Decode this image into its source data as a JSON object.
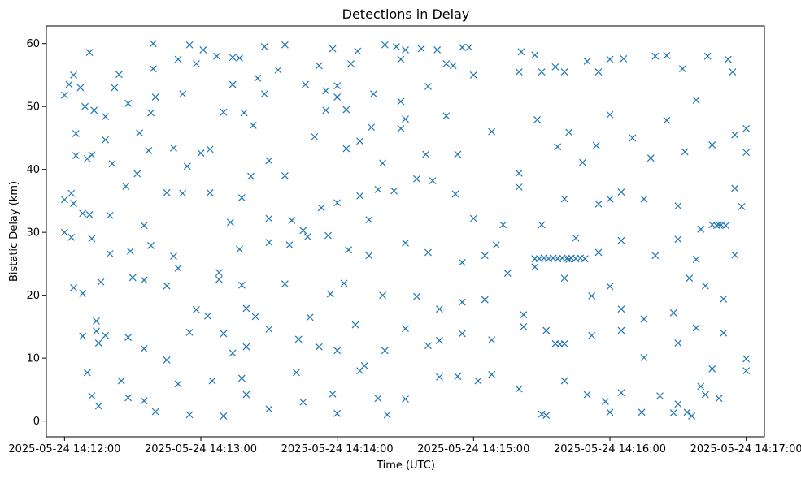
{
  "chart_data": {
    "type": "scatter",
    "title": "Detections in Delay",
    "xlabel": "Time (UTC)",
    "ylabel": "Bistatic Delay (km)",
    "x_type": "time",
    "xlim": [
      "2025-05-24 14:11:52",
      "2025-05-24 14:17:08"
    ],
    "ylim": [
      -2.5,
      62.8
    ],
    "x_ticks": [
      "2025-05-24 14:12:00",
      "2025-05-24 14:13:00",
      "2025-05-24 14:14:00",
      "2025-05-24 14:15:00",
      "2025-05-24 14:16:00",
      "2025-05-24 14:17:00"
    ],
    "y_ticks": [
      0,
      10,
      20,
      30,
      40,
      50,
      60
    ],
    "marker": "x",
    "grid": false,
    "color": "#1f77b4",
    "points": [
      [
        "2025-05-24 14:12:00",
        51.8
      ],
      [
        "2025-05-24 14:12:02",
        53.5
      ],
      [
        "2025-05-24 14:12:04",
        55.0
      ],
      [
        "2025-05-24 14:12:07",
        53.0
      ],
      [
        "2025-05-24 14:12:09",
        50.0
      ],
      [
        "2025-05-24 14:12:11",
        58.6
      ],
      [
        "2025-05-24 14:12:13",
        49.4
      ],
      [
        "2025-05-24 14:12:18",
        44.7
      ],
      [
        "2025-05-24 14:12:22",
        53.0
      ],
      [
        "2025-05-24 14:12:24",
        55.1
      ],
      [
        "2025-05-24 14:12:28",
        50.5
      ],
      [
        "2025-05-24 14:12:38",
        49.0
      ],
      [
        "2025-05-24 14:12:40",
        51.5
      ],
      [
        "2025-05-24 14:12:39",
        60.0
      ],
      [
        "2025-05-24 14:12:39",
        56.0
      ],
      [
        "2025-05-24 14:12:50",
        57.5
      ],
      [
        "2025-05-24 14:12:52",
        52.0
      ],
      [
        "2025-05-24 14:12:55",
        59.8
      ],
      [
        "2025-05-24 14:12:58",
        56.8
      ],
      [
        "2025-05-24 14:13:01",
        59.0
      ],
      [
        "2025-05-24 14:13:07",
        58.0
      ],
      [
        "2025-05-24 14:13:14",
        57.8
      ],
      [
        "2025-05-24 14:13:17",
        57.7
      ],
      [
        "2025-05-24 14:13:14",
        53.5
      ],
      [
        "2025-05-24 14:13:23",
        47.0
      ],
      [
        "2025-05-24 14:13:25",
        54.5
      ],
      [
        "2025-05-24 14:13:28",
        52.0
      ],
      [
        "2025-05-24 14:13:28",
        59.5
      ],
      [
        "2025-05-24 14:13:34",
        55.8
      ],
      [
        "2025-05-24 14:13:37",
        59.8
      ],
      [
        "2025-05-24 14:13:46",
        53.5
      ],
      [
        "2025-05-24 14:13:52",
        56.5
      ],
      [
        "2025-05-24 14:13:55",
        52.5
      ],
      [
        "2025-05-24 14:14:00",
        53.3
      ],
      [
        "2025-05-24 14:13:58",
        59.2
      ],
      [
        "2025-05-24 14:14:00",
        51.5
      ],
      [
        "2025-05-24 14:14:04",
        49.5
      ],
      [
        "2025-05-24 14:14:06",
        56.8
      ],
      [
        "2025-05-24 14:14:09",
        58.8
      ],
      [
        "2025-05-24 14:14:16",
        52.0
      ],
      [
        "2025-05-24 14:14:21",
        59.8
      ],
      [
        "2025-05-24 14:14:26",
        59.5
      ],
      [
        "2025-05-24 14:14:28",
        57.5
      ],
      [
        "2025-05-24 14:14:30",
        59.0
      ],
      [
        "2025-05-24 14:14:28",
        50.8
      ],
      [
        "2025-05-24 14:14:30",
        48.0
      ],
      [
        "2025-05-24 14:14:28",
        46.5
      ],
      [
        "2025-05-24 14:14:37",
        59.2
      ],
      [
        "2025-05-24 14:14:40",
        53.2
      ],
      [
        "2025-05-24 14:14:44",
        59.0
      ],
      [
        "2025-05-24 14:14:48",
        56.8
      ],
      [
        "2025-05-24 14:14:51",
        56.5
      ],
      [
        "2025-05-24 14:14:55",
        59.4
      ],
      [
        "2025-05-24 14:14:58",
        59.4
      ],
      [
        "2025-05-24 14:15:00",
        55.0
      ],
      [
        "2025-05-24 14:15:20",
        55.5
      ],
      [
        "2025-05-24 14:15:21",
        58.7
      ],
      [
        "2025-05-24 14:15:27",
        58.2
      ],
      [
        "2025-05-24 14:15:30",
        55.5
      ],
      [
        "2025-05-24 14:15:36",
        56.3
      ],
      [
        "2025-05-24 14:15:40",
        55.5
      ],
      [
        "2025-05-24 14:15:50",
        57.2
      ],
      [
        "2025-05-24 14:15:55",
        55.5
      ],
      [
        "2025-05-24 14:16:00",
        57.5
      ],
      [
        "2025-05-24 14:16:06",
        57.6
      ],
      [
        "2025-05-24 14:16:20",
        58.0
      ],
      [
        "2025-05-24 14:16:25",
        58.1
      ],
      [
        "2025-05-24 14:16:32",
        56.0
      ],
      [
        "2025-05-24 14:16:43",
        58.0
      ],
      [
        "2025-05-24 14:16:52",
        57.5
      ],
      [
        "2025-05-24 14:16:54",
        55.5
      ],
      [
        "2025-05-24 14:17:00",
        46.5
      ],
      [
        "2025-05-24 14:12:05",
        45.7
      ],
      [
        "2025-05-24 14:12:05",
        42.2
      ],
      [
        "2025-05-24 14:12:10",
        41.7
      ],
      [
        "2025-05-24 14:12:12",
        42.3
      ],
      [
        "2025-05-24 14:12:18",
        48.4
      ],
      [
        "2025-05-24 14:12:21",
        40.9
      ],
      [
        "2025-05-24 14:12:33",
        45.8
      ],
      [
        "2025-05-24 14:12:37",
        43.0
      ],
      [
        "2025-05-24 14:12:48",
        43.4
      ],
      [
        "2025-05-24 14:12:54",
        40.5
      ],
      [
        "2025-05-24 14:13:00",
        42.6
      ],
      [
        "2025-05-24 14:13:04",
        43.2
      ],
      [
        "2025-05-24 14:13:10",
        49.1
      ],
      [
        "2025-05-24 14:13:19",
        49.0
      ],
      [
        "2025-05-24 14:13:30",
        41.4
      ],
      [
        "2025-05-24 14:13:50",
        45.2
      ],
      [
        "2025-05-24 14:13:55",
        49.4
      ],
      [
        "2025-05-24 14:14:04",
        43.3
      ],
      [
        "2025-05-24 14:14:10",
        44.5
      ],
      [
        "2025-05-24 14:14:15",
        46.7
      ],
      [
        "2025-05-24 14:14:20",
        41.0
      ],
      [
        "2025-05-24 14:14:39",
        42.4
      ],
      [
        "2025-05-24 14:14:48",
        48.5
      ],
      [
        "2025-05-24 14:14:53",
        42.4
      ],
      [
        "2025-05-24 14:15:08",
        46.0
      ],
      [
        "2025-05-24 14:15:20",
        39.4
      ],
      [
        "2025-05-24 14:15:28",
        47.9
      ],
      [
        "2025-05-24 14:15:37",
        43.6
      ],
      [
        "2025-05-24 14:15:42",
        45.9
      ],
      [
        "2025-05-24 14:15:48",
        41.1
      ],
      [
        "2025-05-24 14:15:54",
        43.8
      ],
      [
        "2025-05-24 14:16:00",
        48.7
      ],
      [
        "2025-05-24 14:16:10",
        45.0
      ],
      [
        "2025-05-24 14:16:18",
        41.8
      ],
      [
        "2025-05-24 14:16:25",
        47.8
      ],
      [
        "2025-05-24 14:16:33",
        42.8
      ],
      [
        "2025-05-24 14:16:38",
        51.0
      ],
      [
        "2025-05-24 14:16:45",
        43.9
      ],
      [
        "2025-05-24 14:16:55",
        45.5
      ],
      [
        "2025-05-24 14:17:00",
        42.7
      ],
      [
        "2025-05-24 14:12:00",
        35.2
      ],
      [
        "2025-05-24 14:12:03",
        36.2
      ],
      [
        "2025-05-24 14:12:04",
        34.6
      ],
      [
        "2025-05-24 14:12:08",
        33.0
      ],
      [
        "2025-05-24 14:12:11",
        32.8
      ],
      [
        "2025-05-24 14:12:20",
        32.7
      ],
      [
        "2025-05-24 14:12:27",
        37.3
      ],
      [
        "2025-05-24 14:12:32",
        39.3
      ],
      [
        "2025-05-24 14:12:35",
        31.1
      ],
      [
        "2025-05-24 14:12:45",
        36.3
      ],
      [
        "2025-05-24 14:12:52",
        36.2
      ],
      [
        "2025-05-24 14:13:04",
        36.3
      ],
      [
        "2025-05-24 14:13:13",
        31.6
      ],
      [
        "2025-05-24 14:13:18",
        35.5
      ],
      [
        "2025-05-24 14:13:22",
        38.9
      ],
      [
        "2025-05-24 14:13:30",
        32.2
      ],
      [
        "2025-05-24 14:13:37",
        39.0
      ],
      [
        "2025-05-24 14:13:40",
        31.9
      ],
      [
        "2025-05-24 14:13:45",
        30.3
      ],
      [
        "2025-05-24 14:13:53",
        33.9
      ],
      [
        "2025-05-24 14:14:00",
        34.7
      ],
      [
        "2025-05-24 14:14:10",
        35.8
      ],
      [
        "2025-05-24 14:14:14",
        32.0
      ],
      [
        "2025-05-24 14:14:18",
        36.8
      ],
      [
        "2025-05-24 14:14:25",
        36.6
      ],
      [
        "2025-05-24 14:14:35",
        38.5
      ],
      [
        "2025-05-24 14:14:42",
        38.2
      ],
      [
        "2025-05-24 14:14:52",
        36.1
      ],
      [
        "2025-05-24 14:15:00",
        32.2
      ],
      [
        "2025-05-24 14:15:13",
        31.2
      ],
      [
        "2025-05-24 14:15:20",
        37.2
      ],
      [
        "2025-05-24 14:15:30",
        31.2
      ],
      [
        "2025-05-24 14:15:40",
        35.3
      ],
      [
        "2025-05-24 14:15:55",
        34.5
      ],
      [
        "2025-05-24 14:16:00",
        35.3
      ],
      [
        "2025-05-24 14:16:05",
        36.4
      ],
      [
        "2025-05-24 14:16:15",
        35.3
      ],
      [
        "2025-05-24 14:16:30",
        34.2
      ],
      [
        "2025-05-24 14:16:40",
        30.5
      ],
      [
        "2025-05-24 14:16:48",
        31.2
      ],
      [
        "2025-05-24 14:16:55",
        37.0
      ],
      [
        "2025-05-24 14:16:58",
        34.1
      ],
      [
        "2025-05-24 14:12:00",
        30.0
      ],
      [
        "2025-05-24 14:12:03",
        29.2
      ],
      [
        "2025-05-24 14:12:12",
        29.0
      ],
      [
        "2025-05-24 14:12:20",
        26.6
      ],
      [
        "2025-05-24 14:12:29",
        27.0
      ],
      [
        "2025-05-24 14:12:38",
        27.9
      ],
      [
        "2025-05-24 14:12:48",
        26.2
      ],
      [
        "2025-05-24 14:12:50",
        24.3
      ],
      [
        "2025-05-24 14:13:08",
        23.6
      ],
      [
        "2025-05-24 14:13:17",
        27.3
      ],
      [
        "2025-05-24 14:13:30",
        28.4
      ],
      [
        "2025-05-24 14:13:39",
        28.0
      ],
      [
        "2025-05-24 14:13:47",
        29.3
      ],
      [
        "2025-05-24 14:13:56",
        29.5
      ],
      [
        "2025-05-24 14:14:05",
        27.2
      ],
      [
        "2025-05-24 14:14:14",
        26.3
      ],
      [
        "2025-05-24 14:14:30",
        28.3
      ],
      [
        "2025-05-24 14:14:40",
        26.8
      ],
      [
        "2025-05-24 14:14:55",
        25.2
      ],
      [
        "2025-05-24 14:15:05",
        26.3
      ],
      [
        "2025-05-24 14:15:10",
        28.0
      ],
      [
        "2025-05-24 14:15:15",
        23.5
      ],
      [
        "2025-05-24 14:15:27",
        24.5
      ],
      [
        "2025-05-24 14:15:42",
        25.7
      ],
      [
        "2025-05-24 14:15:45",
        29.1
      ],
      [
        "2025-05-24 14:15:55",
        26.8
      ],
      [
        "2025-05-24 14:16:05",
        28.7
      ],
      [
        "2025-05-24 14:16:20",
        26.3
      ],
      [
        "2025-05-24 14:16:30",
        28.9
      ],
      [
        "2025-05-24 14:16:38",
        25.7
      ],
      [
        "2025-05-24 14:16:55",
        26.4
      ],
      [
        "2025-05-24 14:15:27",
        25.8
      ],
      [
        "2025-05-24 14:15:29",
        25.8
      ],
      [
        "2025-05-24 14:15:31",
        25.9
      ],
      [
        "2025-05-24 14:15:33",
        25.8
      ],
      [
        "2025-05-24 14:15:35",
        25.9
      ],
      [
        "2025-05-24 14:15:37",
        25.8
      ],
      [
        "2025-05-24 14:15:39",
        25.9
      ],
      [
        "2025-05-24 14:15:41",
        25.8
      ],
      [
        "2025-05-24 14:15:43",
        25.9
      ],
      [
        "2025-05-24 14:15:45",
        25.8
      ],
      [
        "2025-05-24 14:15:47",
        25.9
      ],
      [
        "2025-05-24 14:15:49",
        25.8
      ],
      [
        "2025-05-24 14:16:45",
        31.2
      ],
      [
        "2025-05-24 14:16:47",
        31.1
      ],
      [
        "2025-05-24 14:16:49",
        31.2
      ],
      [
        "2025-05-24 14:16:51",
        31.1
      ],
      [
        "2025-05-24 14:12:04",
        21.2
      ],
      [
        "2025-05-24 14:12:08",
        20.3
      ],
      [
        "2025-05-24 14:12:16",
        22.1
      ],
      [
        "2025-05-24 14:12:30",
        22.8
      ],
      [
        "2025-05-24 14:12:35",
        22.4
      ],
      [
        "2025-05-24 14:12:45",
        21.5
      ],
      [
        "2025-05-24 14:12:58",
        17.7
      ],
      [
        "2025-05-24 14:13:03",
        16.7
      ],
      [
        "2025-05-24 14:13:08",
        22.5
      ],
      [
        "2025-05-24 14:13:18",
        21.6
      ],
      [
        "2025-05-24 14:13:20",
        17.9
      ],
      [
        "2025-05-24 14:13:24",
        16.6
      ],
      [
        "2025-05-24 14:13:37",
        21.8
      ],
      [
        "2025-05-24 14:13:48",
        16.5
      ],
      [
        "2025-05-24 14:13:57",
        20.2
      ],
      [
        "2025-05-24 14:14:03",
        21.9
      ],
      [
        "2025-05-24 14:14:08",
        15.3
      ],
      [
        "2025-05-24 14:14:20",
        20.0
      ],
      [
        "2025-05-24 14:14:35",
        19.8
      ],
      [
        "2025-05-24 14:14:45",
        17.8
      ],
      [
        "2025-05-24 14:14:55",
        18.9
      ],
      [
        "2025-05-24 14:15:05",
        19.3
      ],
      [
        "2025-05-24 14:15:22",
        16.9
      ],
      [
        "2025-05-24 14:15:40",
        22.7
      ],
      [
        "2025-05-24 14:15:52",
        19.9
      ],
      [
        "2025-05-24 14:16:00",
        21.4
      ],
      [
        "2025-05-24 14:16:05",
        17.8
      ],
      [
        "2025-05-24 14:16:15",
        16.2
      ],
      [
        "2025-05-24 14:16:28",
        17.2
      ],
      [
        "2025-05-24 14:16:35",
        22.7
      ],
      [
        "2025-05-24 14:16:42",
        21.5
      ],
      [
        "2025-05-24 14:16:50",
        19.4
      ],
      [
        "2025-05-24 14:12:08",
        13.5
      ],
      [
        "2025-05-24 14:12:14",
        15.9
      ],
      [
        "2025-05-24 14:12:14",
        14.3
      ],
      [
        "2025-05-24 14:12:15",
        12.4
      ],
      [
        "2025-05-24 14:12:18",
        13.6
      ],
      [
        "2025-05-24 14:12:28",
        13.3
      ],
      [
        "2025-05-24 14:12:35",
        11.5
      ],
      [
        "2025-05-24 14:12:45",
        9.7
      ],
      [
        "2025-05-24 14:12:55",
        14.1
      ],
      [
        "2025-05-24 14:13:10",
        13.9
      ],
      [
        "2025-05-24 14:13:14",
        10.8
      ],
      [
        "2025-05-24 14:13:20",
        11.8
      ],
      [
        "2025-05-24 14:13:30",
        14.6
      ],
      [
        "2025-05-24 14:13:43",
        13.0
      ],
      [
        "2025-05-24 14:13:52",
        11.8
      ],
      [
        "2025-05-24 14:14:00",
        11.2
      ],
      [
        "2025-05-24 14:14:10",
        8.0
      ],
      [
        "2025-05-24 14:14:21",
        11.2
      ],
      [
        "2025-05-24 14:14:30",
        14.7
      ],
      [
        "2025-05-24 14:14:40",
        12.0
      ],
      [
        "2025-05-24 14:14:45",
        12.8
      ],
      [
        "2025-05-24 14:14:55",
        13.9
      ],
      [
        "2025-05-24 14:15:08",
        12.9
      ],
      [
        "2025-05-24 14:15:22",
        15.0
      ],
      [
        "2025-05-24 14:15:32",
        14.4
      ],
      [
        "2025-05-24 14:15:36",
        12.3
      ],
      [
        "2025-05-24 14:15:38",
        12.2
      ],
      [
        "2025-05-24 14:15:40",
        12.3
      ],
      [
        "2025-05-24 14:15:52",
        13.6
      ],
      [
        "2025-05-24 14:16:05",
        14.4
      ],
      [
        "2025-05-24 14:16:15",
        10.1
      ],
      [
        "2025-05-24 14:16:30",
        12.4
      ],
      [
        "2025-05-24 14:16:38",
        14.8
      ],
      [
        "2025-05-24 14:16:50",
        14.0
      ],
      [
        "2025-05-24 14:17:00",
        9.9
      ],
      [
        "2025-05-24 14:12:10",
        7.7
      ],
      [
        "2025-05-24 14:12:12",
        4.0
      ],
      [
        "2025-05-24 14:12:15",
        2.4
      ],
      [
        "2025-05-24 14:12:25",
        6.4
      ],
      [
        "2025-05-24 14:12:28",
        3.7
      ],
      [
        "2025-05-24 14:12:35",
        3.2
      ],
      [
        "2025-05-24 14:12:40",
        1.5
      ],
      [
        "2025-05-24 14:12:50",
        5.9
      ],
      [
        "2025-05-24 14:12:55",
        1.0
      ],
      [
        "2025-05-24 14:13:05",
        6.4
      ],
      [
        "2025-05-24 14:13:10",
        0.8
      ],
      [
        "2025-05-24 14:13:18",
        6.8
      ],
      [
        "2025-05-24 14:13:20",
        4.2
      ],
      [
        "2025-05-24 14:13:30",
        1.9
      ],
      [
        "2025-05-24 14:13:42",
        7.7
      ],
      [
        "2025-05-24 14:13:45",
        3.0
      ],
      [
        "2025-05-24 14:13:58",
        4.3
      ],
      [
        "2025-05-24 14:14:00",
        1.2
      ],
      [
        "2025-05-24 14:14:12",
        8.8
      ],
      [
        "2025-05-24 14:14:18",
        3.6
      ],
      [
        "2025-05-24 14:14:22",
        1.0
      ],
      [
        "2025-05-24 14:14:30",
        3.5
      ],
      [
        "2025-05-24 14:14:45",
        7.0
      ],
      [
        "2025-05-24 14:14:53",
        7.1
      ],
      [
        "2025-05-24 14:15:02",
        6.4
      ],
      [
        "2025-05-24 14:15:08",
        7.4
      ],
      [
        "2025-05-24 14:15:20",
        5.1
      ],
      [
        "2025-05-24 14:15:30",
        1.1
      ],
      [
        "2025-05-24 14:15:32",
        0.9
      ],
      [
        "2025-05-24 14:15:40",
        6.4
      ],
      [
        "2025-05-24 14:15:50",
        4.2
      ],
      [
        "2025-05-24 14:15:58",
        3.1
      ],
      [
        "2025-05-24 14:16:00",
        1.4
      ],
      [
        "2025-05-24 14:16:05",
        4.5
      ],
      [
        "2025-05-24 14:16:14",
        1.4
      ],
      [
        "2025-05-24 14:16:22",
        4.0
      ],
      [
        "2025-05-24 14:16:28",
        1.3
      ],
      [
        "2025-05-24 14:16:30",
        2.7
      ],
      [
        "2025-05-24 14:16:34",
        1.4
      ],
      [
        "2025-05-24 14:16:36",
        0.8
      ],
      [
        "2025-05-24 14:16:40",
        5.5
      ],
      [
        "2025-05-24 14:16:42",
        4.2
      ],
      [
        "2025-05-24 14:16:45",
        8.3
      ],
      [
        "2025-05-24 14:16:48",
        3.6
      ],
      [
        "2025-05-24 14:17:00",
        8.0
      ]
    ]
  }
}
